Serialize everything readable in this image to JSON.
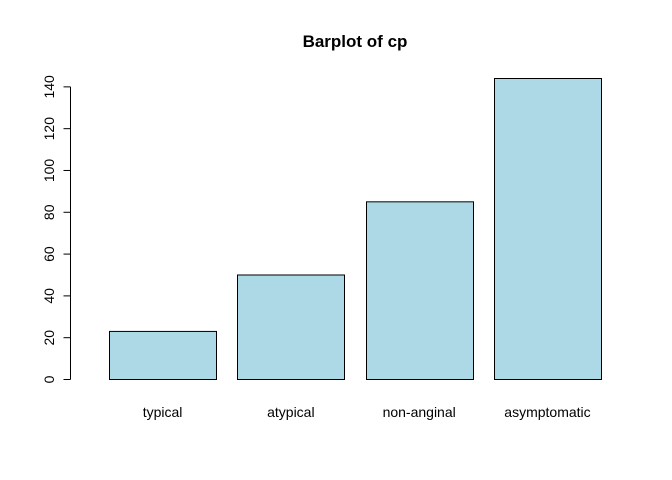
{
  "chart_data": {
    "type": "bar",
    "title": "Barplot of cp",
    "xlabel": "",
    "ylabel": "",
    "categories": [
      "typical",
      "atypical",
      "non-anginal",
      "asymptomatic"
    ],
    "values": [
      23,
      50,
      85,
      144
    ],
    "ylim": [
      0,
      144
    ],
    "yticks": [
      0,
      20,
      40,
      60,
      80,
      100,
      120,
      140
    ],
    "bar_color": "#add8e6",
    "grid": false,
    "legend": "none"
  }
}
